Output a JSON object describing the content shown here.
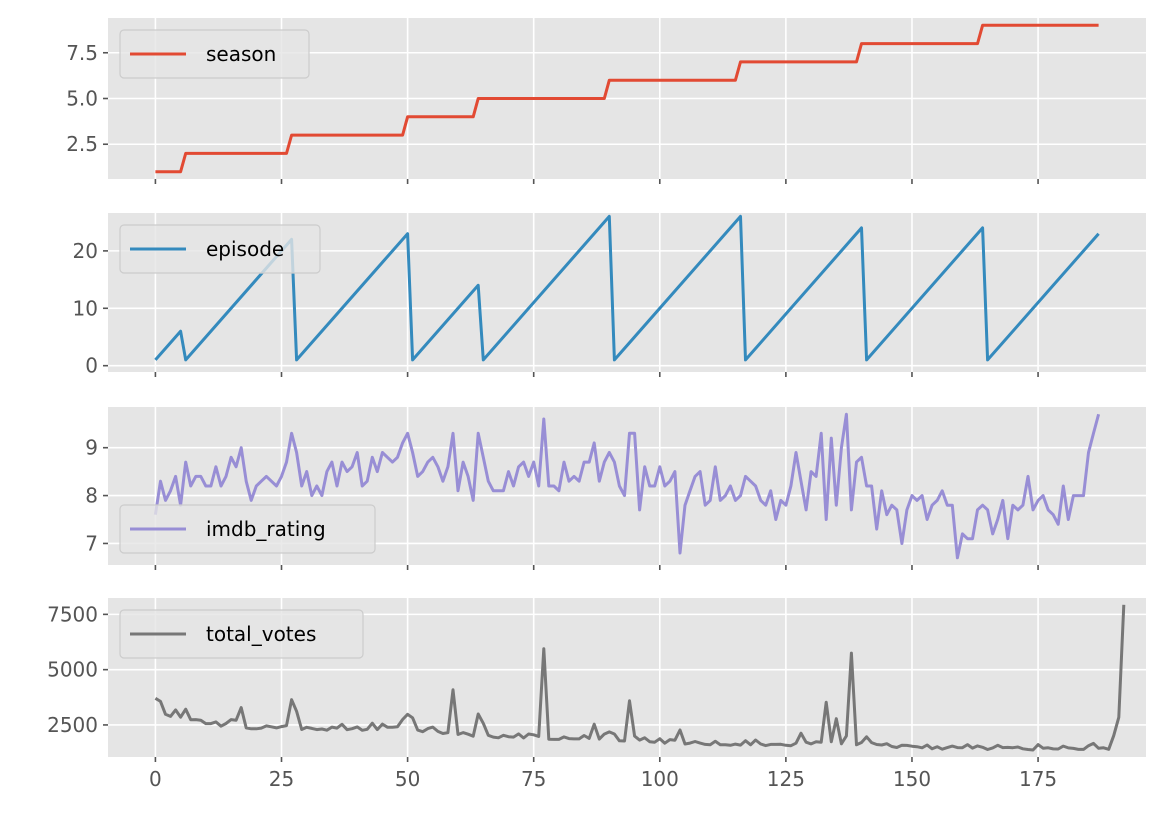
{
  "figure": {
    "background": "#ffffff",
    "panel_background": "#e5e5e5",
    "grid_color": "#ffffff",
    "tick_label_color": "#555555"
  },
  "chart_data": [
    {
      "type": "line",
      "x_ticks": [
        0,
        25,
        50,
        75,
        100,
        125,
        150,
        175
      ],
      "xlim": [
        -9.4,
        196.4
      ],
      "ylim": [
        0.6,
        9.4
      ],
      "y_ticks": [
        2.5,
        5.0,
        7.5
      ],
      "y_tick_labels": [
        "2.5",
        "5.0",
        "7.5"
      ],
      "show_x_tick_labels": false,
      "grid": true,
      "legend": "top-left",
      "series": [
        {
          "name": "season",
          "color": "#E24A33",
          "x": [
            0,
            5,
            6,
            26,
            27,
            49,
            50,
            63,
            64,
            89,
            90,
            115,
            116,
            139,
            140,
            163,
            164,
            187
          ],
          "values": [
            1,
            1,
            2,
            2,
            3,
            3,
            4,
            4,
            5,
            5,
            6,
            6,
            7,
            7,
            8,
            8,
            9,
            9
          ]
        }
      ]
    },
    {
      "type": "line",
      "x_ticks": [
        0,
        25,
        50,
        75,
        100,
        125,
        150,
        175
      ],
      "xlim": [
        -9.4,
        196.4
      ],
      "ylim": [
        -1.1,
        26.6
      ],
      "y_ticks": [
        0,
        10,
        20
      ],
      "y_tick_labels": [
        "0",
        "10",
        "20"
      ],
      "show_x_tick_labels": false,
      "grid": true,
      "legend": "top-left",
      "series": [
        {
          "name": "episode",
          "color": "#348ABD",
          "x": [
            0,
            5,
            6,
            27,
            28,
            50,
            51,
            64,
            65,
            90,
            91,
            116,
            117,
            140,
            141,
            164,
            165,
            187
          ],
          "values": [
            1,
            6,
            1,
            22,
            1,
            23,
            1,
            14,
            1,
            26,
            1,
            26,
            1,
            24,
            1,
            24,
            1,
            23
          ]
        }
      ]
    },
    {
      "type": "line",
      "x_ticks": [
        0,
        25,
        50,
        75,
        100,
        125,
        150,
        175
      ],
      "xlim": [
        -9.4,
        196.4
      ],
      "ylim": [
        6.55,
        9.85
      ],
      "y_ticks": [
        7,
        8,
        9
      ],
      "y_tick_labels": [
        "7",
        "8",
        "9"
      ],
      "show_x_tick_labels": false,
      "grid": true,
      "legend": "lower-left",
      "series": [
        {
          "name": "imdb_rating",
          "color": "#988ED5",
          "values": [
            7.6,
            8.3,
            7.9,
            8.1,
            8.4,
            7.8,
            8.7,
            8.2,
            8.4,
            8.4,
            8.2,
            8.2,
            8.6,
            8.2,
            8.4,
            8.8,
            8.6,
            9.0,
            8.3,
            7.9,
            8.2,
            8.3,
            8.4,
            8.3,
            8.2,
            8.4,
            8.7,
            9.3,
            8.9,
            8.2,
            8.5,
            8.0,
            8.2,
            8.0,
            8.5,
            8.7,
            8.2,
            8.7,
            8.5,
            8.6,
            8.9,
            8.2,
            8.3,
            8.8,
            8.5,
            8.9,
            8.8,
            8.7,
            8.8,
            9.1,
            9.3,
            8.9,
            8.4,
            8.5,
            8.7,
            8.8,
            8.6,
            8.3,
            8.6,
            9.3,
            8.1,
            8.7,
            8.4,
            7.9,
            9.3,
            8.8,
            8.3,
            8.1,
            8.1,
            8.1,
            8.5,
            8.2,
            8.6,
            8.7,
            8.4,
            8.7,
            8.2,
            9.6,
            8.2,
            8.2,
            8.1,
            8.7,
            8.3,
            8.4,
            8.3,
            8.7,
            8.7,
            9.1,
            8.3,
            8.7,
            8.9,
            8.7,
            8.2,
            8.0,
            9.3,
            9.3,
            7.7,
            8.6,
            8.2,
            8.2,
            8.6,
            8.2,
            8.3,
            8.5,
            6.8,
            7.8,
            8.1,
            8.4,
            8.5,
            7.8,
            7.9,
            8.6,
            7.9,
            8.0,
            8.2,
            7.9,
            8.0,
            8.4,
            8.3,
            8.2,
            7.9,
            7.8,
            8.1,
            7.5,
            7.9,
            7.8,
            8.2,
            8.9,
            8.3,
            7.7,
            8.5,
            8.4,
            9.3,
            7.5,
            9.2,
            7.8,
            9.0,
            9.7,
            7.7,
            8.7,
            8.8,
            8.2,
            8.2,
            7.3,
            8.1,
            7.6,
            7.8,
            7.7,
            7.0,
            7.7,
            8.0,
            7.9,
            8.0,
            7.5,
            7.8,
            7.9,
            8.1,
            7.8,
            7.8,
            6.7,
            7.2,
            7.1,
            7.1,
            7.7,
            7.8,
            7.7,
            7.2,
            7.5,
            7.9,
            7.1,
            7.8,
            7.7,
            7.8,
            8.4,
            7.7,
            7.9,
            8.0,
            7.7,
            7.6,
            7.4,
            8.2,
            7.5,
            8.0,
            8.0,
            8.0,
            8.9,
            9.3,
            9.7
          ]
        }
      ]
    },
    {
      "type": "line",
      "x_ticks": [
        0,
        25,
        50,
        75,
        100,
        125,
        150,
        175
      ],
      "x_tick_labels": [
        "0",
        "25",
        "50",
        "75",
        "100",
        "125",
        "150",
        "175"
      ],
      "xlim": [
        -9.4,
        196.4
      ],
      "ylim": [
        1050,
        8240
      ],
      "y_ticks": [
        2500,
        5000,
        7500
      ],
      "y_tick_labels": [
        "2500",
        "5000",
        "7500"
      ],
      "show_x_tick_labels": true,
      "grid": true,
      "legend": "top-left",
      "series": [
        {
          "name": "total_votes",
          "color": "#777777",
          "values": [
            3706,
            3566,
            2983,
            2886,
            3179,
            2852,
            3213,
            2736,
            2742,
            2713,
            2561,
            2560,
            2637,
            2441,
            2566,
            2742,
            2713,
            3282,
            2364,
            2324,
            2323,
            2358,
            2458,
            2417,
            2367,
            2424,
            2472,
            3640,
            3115,
            2293,
            2395,
            2342,
            2291,
            2315,
            2262,
            2400,
            2358,
            2527,
            2284,
            2328,
            2412,
            2256,
            2302,
            2578,
            2290,
            2538,
            2398,
            2398,
            2418,
            2747,
            2981,
            2822,
            2266,
            2195,
            2333,
            2404,
            2206,
            2112,
            2150,
            4091,
            2069,
            2153,
            2080,
            1989,
            2994,
            2575,
            2032,
            1951,
            1918,
            2030,
            1967,
            1951,
            2093,
            1907,
            2092,
            2053,
            1982,
            5948,
            1856,
            1847,
            1848,
            1957,
            1884,
            1870,
            1868,
            2020,
            1892,
            2532,
            1860,
            2087,
            2183,
            2090,
            1783,
            1775,
            3590,
            1996,
            1815,
            1920,
            1744,
            1719,
            1878,
            1675,
            1837,
            1809,
            2272,
            1639,
            1679,
            1753,
            1679,
            1620,
            1604,
            1761,
            1606,
            1606,
            1581,
            1634,
            1588,
            1788,
            1603,
            1817,
            1640,
            1566,
            1620,
            1621,
            1626,
            1580,
            1561,
            1674,
            2128,
            1721,
            1641,
            1737,
            1719,
            3528,
            1736,
            2780,
            1647,
            2003,
            5749,
            1600,
            1706,
            1962,
            1701,
            1615,
            1593,
            1652,
            1526,
            1481,
            1581,
            1574,
            1538,
            1516,
            1465,
            1592,
            1419,
            1515,
            1403,
            1473,
            1543,
            1473,
            1470,
            1609,
            1454,
            1553,
            1487,
            1389,
            1460,
            1580,
            1475,
            1484,
            1469,
            1500,
            1421,
            1387,
            1365,
            1612,
            1448,
            1466,
            1415,
            1413,
            1543,
            1462,
            1440,
            1394,
            1394,
            1562,
            1664,
            1445,
            1468,
            1400,
            2014,
            2844,
            7934
          ]
        }
      ]
    }
  ]
}
